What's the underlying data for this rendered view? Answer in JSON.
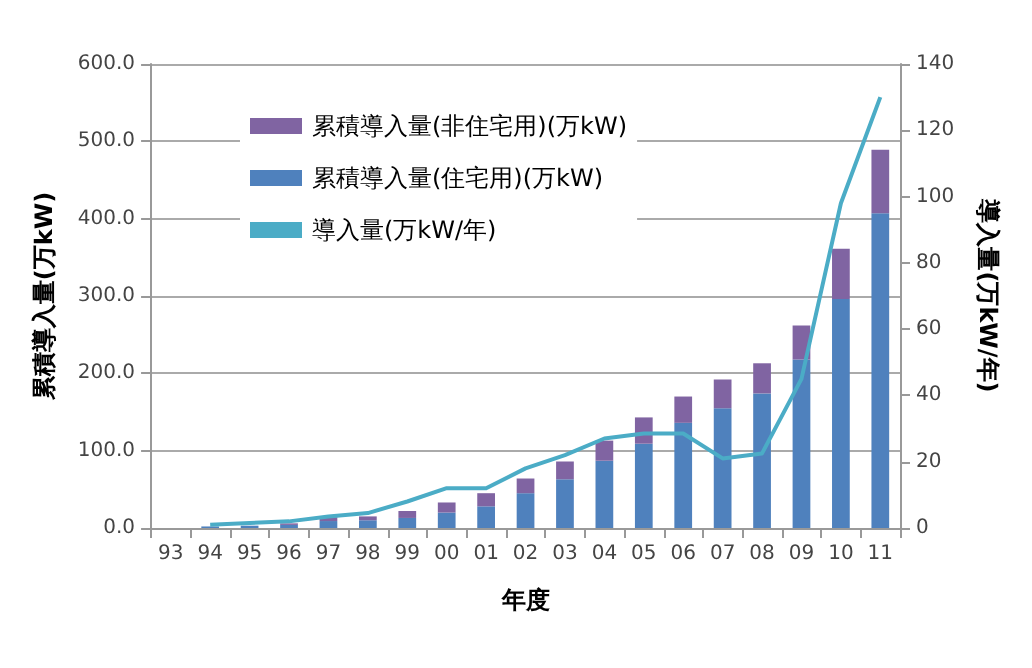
{
  "chart_data": {
    "type": "bar",
    "stacked": true,
    "xlabel": "年度",
    "ylabel": "累積導入量(万kW)",
    "y2label": "導入量(万kW/年)",
    "categories": [
      "93",
      "94",
      "95",
      "96",
      "97",
      "98",
      "99",
      "00",
      "01",
      "02",
      "03",
      "04",
      "05",
      "06",
      "07",
      "08",
      "09",
      "10",
      "11"
    ],
    "series": [
      {
        "name": "累積導入量(住宅用)(万kW)",
        "color": "#4f81bd",
        "values": [
          0,
          2,
          3,
          4,
          9,
          10,
          13,
          20,
          28,
          45,
          63,
          87,
          109,
          136,
          155,
          174,
          218,
          296,
          407
        ]
      },
      {
        "name": "累積導入量(非住宅用)(万kW)",
        "color": "#8064a2",
        "values": [
          0,
          0,
          0,
          2,
          5,
          5,
          9,
          13,
          17,
          19,
          23,
          26,
          34,
          34,
          37,
          39,
          44,
          65,
          82
        ]
      },
      {
        "name": "導入量(万kW/年)",
        "type": "line",
        "axis": "y2",
        "color": "#4bacc6",
        "values": [
          null,
          1,
          1.5,
          2,
          3.5,
          4.5,
          8,
          12,
          12,
          18,
          22,
          27,
          28.5,
          28.5,
          21,
          22.5,
          45,
          98,
          130
        ]
      }
    ],
    "ylim": [
      0,
      600
    ],
    "yticks": [
      {
        "value": 0,
        "label": "0.0"
      },
      {
        "value": 100,
        "label": "100.0"
      },
      {
        "value": 200,
        "label": "200.0"
      },
      {
        "value": 300,
        "label": "300.0"
      },
      {
        "value": 400,
        "label": "400.0"
      },
      {
        "value": 500,
        "label": "500.0"
      },
      {
        "value": 600,
        "label": "600.0"
      }
    ],
    "y2lim": [
      0,
      140
    ],
    "y2ticks": [
      0,
      20,
      40,
      60,
      80,
      100,
      120,
      140
    ],
    "grid": "y",
    "legend": "top left",
    "marker": "none"
  }
}
